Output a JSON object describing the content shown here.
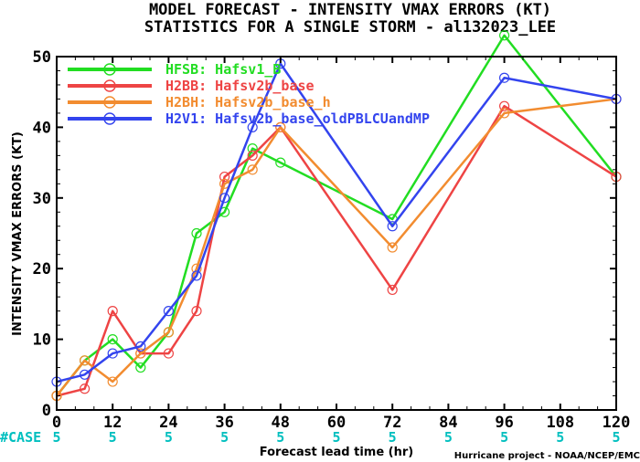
{
  "chart_data": {
    "type": "line",
    "title": "MODEL FORECAST - INTENSITY VMAX ERRORS (KT)",
    "subtitle": "STATISTICS FOR A SINGLE STORM - al132023_LEE",
    "xlabel": "Forecast lead time (hr)",
    "ylabel": "INTENSITY VMAX ERRORS (KT)",
    "xlim": [
      0,
      120
    ],
    "ylim": [
      0,
      50
    ],
    "xticks": [
      "0",
      "12",
      "24",
      "36",
      "48",
      "60",
      "72",
      "84",
      "96",
      "108",
      "120"
    ],
    "yticks": [
      "0",
      "10",
      "20",
      "30",
      "40",
      "50"
    ],
    "x": [
      0,
      6,
      12,
      18,
      24,
      30,
      36,
      42,
      48,
      72,
      96,
      120
    ],
    "legend_position": "top-left",
    "series": [
      {
        "name": "HFSB: Hafsv1_B",
        "color": "#22dd22",
        "values": [
          2,
          7,
          10,
          6,
          11,
          25,
          28,
          37,
          35,
          27,
          53,
          33
        ]
      },
      {
        "name": "H2BB: Hafsv2b_base",
        "color": "#ee4444",
        "values": [
          2,
          3,
          14,
          8,
          8,
          14,
          33,
          36,
          40,
          17,
          43,
          33
        ]
      },
      {
        "name": "H2BH: Hafsv2b_base_h",
        "color": "#f28c30",
        "values": [
          2,
          7,
          4,
          8,
          11,
          20,
          32,
          34,
          40,
          23,
          42,
          44
        ]
      },
      {
        "name": "H2V1: Hafsv2b_base_oldPBLCUandMP",
        "color": "#3344ee",
        "values": [
          4,
          5,
          8,
          9,
          14,
          19,
          30,
          40,
          49,
          26,
          47,
          44
        ]
      }
    ],
    "case_label": "#CASE",
    "case_x": [
      0,
      12,
      24,
      36,
      48,
      60,
      72,
      84,
      96,
      108,
      120
    ],
    "case_counts": [
      "5",
      "5",
      "5",
      "5",
      "5",
      "5",
      "5",
      "5",
      "5",
      "5",
      "5"
    ],
    "credit": "Hurricane project - NOAA/NCEP/EMC"
  }
}
